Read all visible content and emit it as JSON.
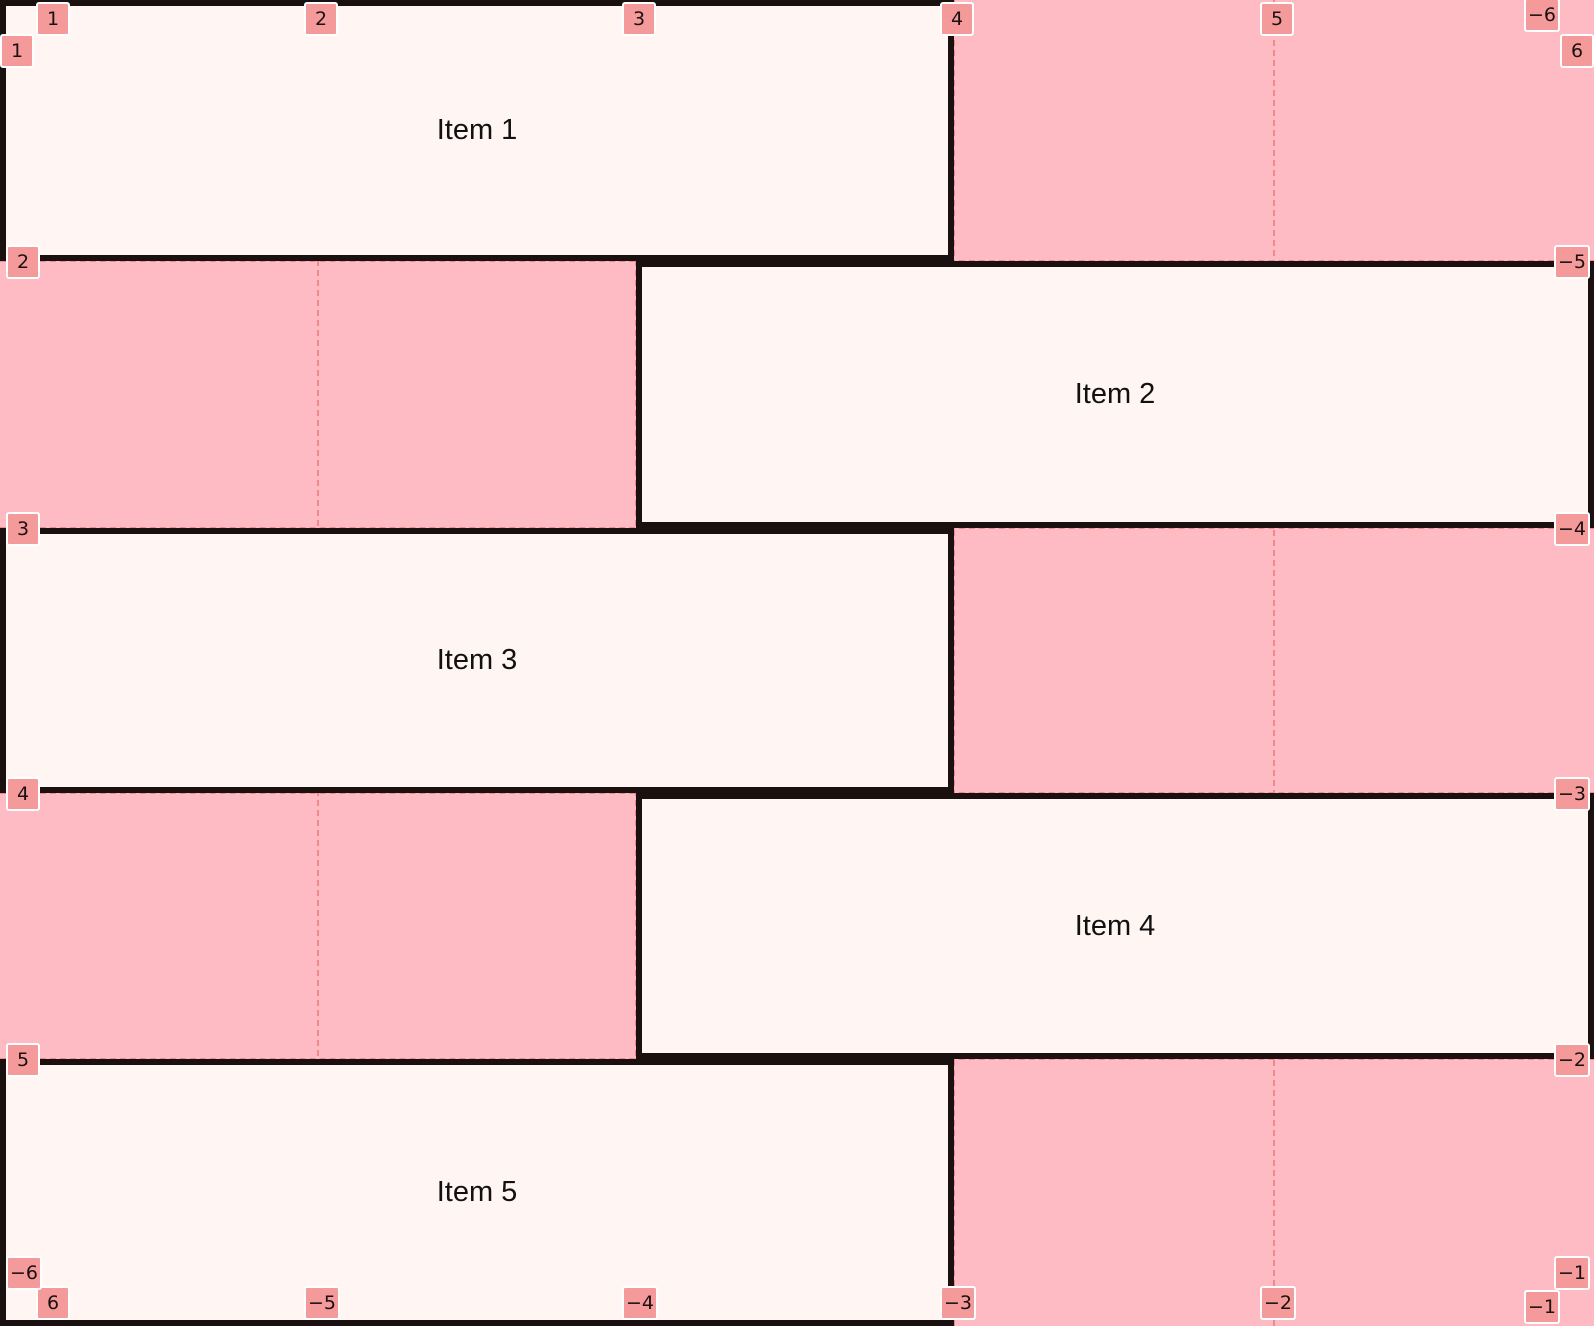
{
  "colors": {
    "gap": "#ffbbc4",
    "item_fill": "#fff5f3",
    "border": "#1a1010",
    "line_label": "#f49a9a"
  },
  "items": [
    {
      "label": "Item 1",
      "col": [
        1,
        4
      ],
      "row": [
        1,
        2
      ]
    },
    {
      "label": "Item 2",
      "col": [
        3,
        6
      ],
      "row": [
        2,
        3
      ]
    },
    {
      "label": "Item 3",
      "col": [
        1,
        4
      ],
      "row": [
        3,
        4
      ]
    },
    {
      "label": "Item 4",
      "col": [
        3,
        6
      ],
      "row": [
        4,
        5
      ]
    },
    {
      "label": "Item 5",
      "col": [
        1,
        4
      ],
      "row": [
        5,
        6
      ]
    }
  ],
  "line_labels": {
    "top": [
      "1",
      "2",
      "3",
      "4",
      "5",
      "−6"
    ],
    "bottom": [
      "6",
      "−5",
      "−4",
      "−3",
      "−2",
      "−1"
    ],
    "left": [
      "1",
      "2",
      "3",
      "4",
      "5",
      "−6"
    ],
    "right": [
      "6",
      "−5",
      "−4",
      "−3",
      "−2",
      "−1"
    ]
  }
}
